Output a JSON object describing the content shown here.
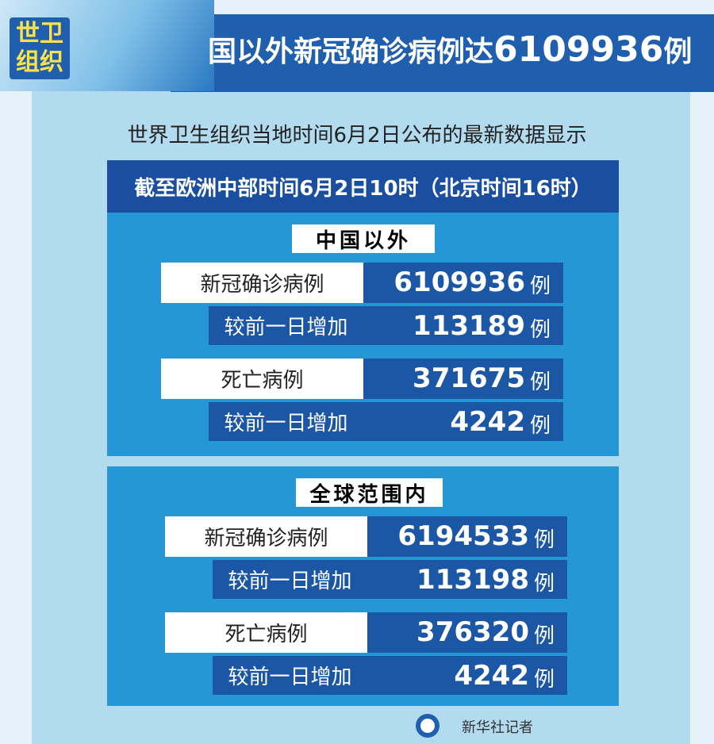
{
  "header": {
    "badge": "世卫组织",
    "title_text": "国以外新冠确诊病例达",
    "title_number": "6109936",
    "title_unit": "例"
  },
  "subtitle": "世界卫生组织当地时间6月2日公布的最新数据显示",
  "box_header": "截至欧洲中部时间6月2日10时（北京时间16时）",
  "sections": [
    {
      "title": "中国以外",
      "groups": [
        {
          "label": "新冠确诊病例",
          "value": 6109936,
          "unit": "例",
          "change_label": "较前一日增加",
          "change": 113189,
          "change_unit": "例"
        },
        {
          "label": "死亡病例",
          "value": 371675,
          "unit": "例",
          "change_label": "较前一日增加",
          "change": 4242,
          "change_unit": "例"
        }
      ]
    },
    {
      "title": "全球范围内",
      "groups": [
        {
          "label": "新冠确诊病例",
          "value": 6194533,
          "unit": "例",
          "change_label": "较前一日增加",
          "change": 113198,
          "change_unit": "例"
        },
        {
          "label": "死亡病例",
          "value": 376320,
          "unit": "例",
          "change_label": "较前一日增加",
          "change": 4242,
          "change_unit": "例"
        }
      ]
    }
  ],
  "footer": "新华社记者"
}
